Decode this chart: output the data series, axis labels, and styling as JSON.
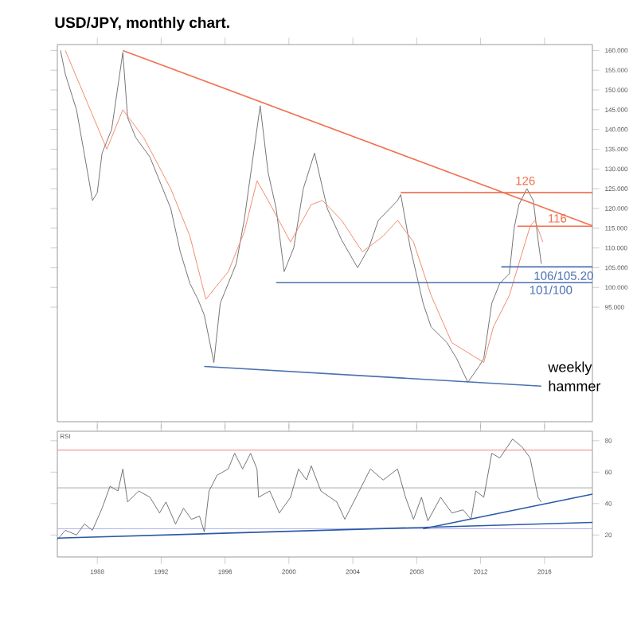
{
  "chart_data": [
    {
      "type": "line",
      "title": "USD/JPY, monthly chart.",
      "xlim": [
        1985.5,
        2019.0
      ],
      "ylim": [
        66,
        161.5
      ],
      "tick_labels": "y",
      "xticks": [
        {
          "value": 1988,
          "label": null
        },
        {
          "value": 1992,
          "label": null
        },
        {
          "value": 1996,
          "label": null
        },
        {
          "value": 2000,
          "label": null
        },
        {
          "value": 2004,
          "label": null
        },
        {
          "value": 2008,
          "label": null
        },
        {
          "value": 2012,
          "label": null
        },
        {
          "value": 2016,
          "label": null
        }
      ],
      "yticks": [
        {
          "value": 95,
          "label": "95.000"
        },
        {
          "value": 100,
          "label": "100.000"
        },
        {
          "value": 105,
          "label": "105.000"
        },
        {
          "value": 110,
          "label": "110.000"
        },
        {
          "value": 115,
          "label": "115.000"
        },
        {
          "value": 120,
          "label": "120.000"
        },
        {
          "value": 125,
          "label": "125.000"
        },
        {
          "value": 130,
          "label": "130.000"
        },
        {
          "value": 135,
          "label": "135.000"
        },
        {
          "value": 140,
          "label": "140.000"
        },
        {
          "value": 145,
          "label": "145.000"
        },
        {
          "value": 150,
          "label": "150.000"
        },
        {
          "value": 155,
          "label": "155.000"
        },
        {
          "value": 160,
          "label": "160.000"
        }
      ],
      "series": [
        {
          "color": "#666666",
          "x": [
            1985.7,
            1986.0,
            1986.7,
            1987.4,
            1987.7,
            1988.0,
            1988.3,
            1988.9,
            1989.6,
            1989.9,
            1990.4,
            1991.3,
            1992.6,
            1993.2,
            1993.8,
            1994.3,
            1994.7,
            1995.3,
            1995.7,
            1996.7,
            1997.2,
            1998.2,
            1998.7,
            1999.2,
            1999.7,
            2000.3,
            2000.9,
            2001.6,
            2002.4,
            2003.3,
            2004.3,
            2005.0,
            2005.6,
            2006.8,
            2007.0,
            2007.6,
            2008.4,
            2008.9,
            2009.9,
            2010.5,
            2011.2,
            2011.9,
            2012.2,
            2012.7,
            2013.2,
            2013.8,
            2014.1,
            2014.4,
            2014.9,
            2015.3,
            2015.6,
            2015.8
          ],
          "values": [
            160,
            154,
            145,
            129,
            122,
            124,
            134,
            140,
            159.5,
            143,
            138,
            133,
            120,
            109,
            101,
            97,
            93,
            81,
            96,
            106,
            117,
            146,
            129,
            120,
            104,
            110,
            125,
            134,
            120,
            112,
            105,
            110,
            117,
            122,
            123.5,
            110,
            96,
            90,
            86,
            82,
            76,
            80,
            82,
            96,
            101,
            103.5,
            115,
            121,
            125,
            122,
            112,
            106
          ]
        },
        {
          "color": "#f08060",
          "x": [
            1986.0,
            1988.6,
            1989.6,
            1990.9,
            1992.6,
            1993.8,
            1994.8,
            1996.2,
            1997.2,
            1998.0,
            1998.7,
            2000.1,
            2001.4,
            2002.1,
            2003.3,
            2004.6,
            2005.9,
            2006.8,
            2007.8,
            2008.9,
            2010.2,
            2012.2,
            2012.8,
            2013.8,
            2015.1,
            2015.4,
            2015.9
          ],
          "values": [
            160,
            135,
            145,
            138,
            125,
            113,
            97,
            104,
            114,
            127,
            122,
            111.5,
            121,
            122,
            117,
            109,
            113,
            117,
            111.5,
            98,
            86,
            81,
            90,
            98,
            115.5,
            117,
            111.5
          ]
        },
        {
          "color": "#f07050",
          "x": [
            1989.6,
            2019.0
          ],
          "values": [
            160,
            115.6
          ]
        },
        {
          "color": "#4a70b0",
          "x": [
            1994.7,
            2015.8
          ],
          "values": [
            80,
            75
          ]
        },
        {
          "color": "#f07050",
          "x": [
            2007.0,
            2019.0
          ],
          "values": [
            124,
            124
          ]
        },
        {
          "color": "#f07050",
          "x": [
            2014.3,
            2019.0
          ],
          "values": [
            115.5,
            115.5
          ]
        },
        {
          "color": "#4a70b0",
          "x": [
            2013.3,
            2019.0
          ],
          "values": [
            105.2,
            105.2
          ]
        },
        {
          "color": "#4a70b0",
          "x": [
            1999.2,
            2019.0
          ],
          "values": [
            101.2,
            101.2
          ]
        }
      ],
      "annotations": [
        {
          "text": "126",
          "x": 2014.8,
          "y": 127
        },
        {
          "text": "116",
          "x": 2016.8,
          "y": 117.5
        },
        {
          "text": "106/105.20",
          "x": 2017.2,
          "y": 103
        },
        {
          "text": "101/100",
          "x": 2016.4,
          "y": 99.4
        },
        "weekly hammer"
      ]
    },
    {
      "type": "line",
      "title": "RSI",
      "xlim": [
        1985.5,
        2019.0
      ],
      "ylim": [
        6,
        86
      ],
      "xticks": [
        1988,
        1992,
        1996,
        2000,
        2004,
        2008,
        2012,
        2016
      ],
      "yticks": [
        20,
        40,
        60,
        80
      ],
      "ref_lines": [
        {
          "axis": "y",
          "value": 74,
          "color": "#f08080"
        },
        {
          "axis": "y",
          "value": 50,
          "color": "#aaaaaa"
        },
        {
          "axis": "y",
          "value": 24,
          "color": "#b0b0f0"
        }
      ],
      "series": [
        {
          "color": "#666666",
          "x": [
            1985.5,
            1986.0,
            1986.7,
            1987.2,
            1987.7,
            1988.3,
            1988.8,
            1989.3,
            1989.6,
            1989.9,
            1990.6,
            1991.3,
            1991.9,
            1992.3,
            1992.9,
            1993.4,
            1993.9,
            1994.4,
            1994.7,
            1995.0,
            1995.5,
            1996.2,
            1996.6,
            1997.1,
            1997.6,
            1998.0,
            1998.1,
            1998.8,
            1999.4,
            2000.1,
            2000.6,
            2001.1,
            2001.4,
            2002.0,
            2003.0,
            2003.5,
            2004.2,
            2005.1,
            2005.9,
            2006.8,
            2007.3,
            2007.8,
            2008.3,
            2008.7,
            2009.5,
            2010.2,
            2010.9,
            2011.4,
            2011.7,
            2012.2,
            2012.7,
            2013.2,
            2014.0,
            2014.6,
            2015.1,
            2015.6,
            2015.8
          ],
          "values": [
            17,
            23,
            20,
            27,
            23,
            37,
            51,
            48,
            62,
            41,
            48,
            44,
            34,
            41,
            27,
            37,
            30,
            32,
            22,
            48,
            58,
            62,
            72,
            62,
            72,
            62,
            44,
            48,
            34,
            44,
            62,
            55,
            64,
            48,
            41,
            30,
            44,
            62,
            55,
            62,
            44,
            30,
            44,
            29,
            44,
            34,
            36,
            30,
            48,
            44,
            72,
            69,
            81,
            76,
            69,
            44,
            41
          ]
        },
        {
          "color": "#2a5aa8",
          "x": [
            1985.5,
            2019.0
          ],
          "values": [
            18,
            28
          ]
        },
        {
          "color": "#2a5aa8",
          "x": [
            2008.4,
            2019.0
          ],
          "values": [
            24,
            46
          ]
        }
      ]
    }
  ]
}
